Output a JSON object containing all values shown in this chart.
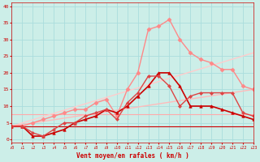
{
  "title": "",
  "xlabel": "Vent moyen/en rafales ( km/h )",
  "background_color": "#cceee8",
  "grid_color": "#aadddd",
  "xlim": [
    0,
    23
  ],
  "ylim": [
    -1,
    41
  ],
  "xticks": [
    0,
    1,
    2,
    3,
    4,
    5,
    6,
    7,
    8,
    9,
    10,
    11,
    12,
    13,
    14,
    15,
    16,
    17,
    18,
    19,
    20,
    21,
    22,
    23
  ],
  "yticks": [
    0,
    5,
    10,
    15,
    20,
    25,
    30,
    35,
    40
  ],
  "series": [
    {
      "x": [
        0,
        23
      ],
      "y": [
        4,
        4
      ],
      "color": "#cc0000",
      "linewidth": 0.8,
      "marker": null,
      "linestyle": "-"
    },
    {
      "x": [
        0,
        23
      ],
      "y": [
        7.5,
        7.5
      ],
      "color": "#ffaaaa",
      "linewidth": 0.8,
      "marker": null,
      "linestyle": "-"
    },
    {
      "x": [
        0,
        23
      ],
      "y": [
        4,
        26
      ],
      "color": "#ffcccc",
      "linewidth": 1.0,
      "marker": null,
      "linestyle": "-"
    },
    {
      "x": [
        0,
        23
      ],
      "y": [
        4,
        15
      ],
      "color": "#ffbbbb",
      "linewidth": 1.0,
      "marker": null,
      "linestyle": "-"
    },
    {
      "x": [
        0,
        1,
        2,
        3,
        4,
        5,
        6,
        7,
        8,
        9,
        10,
        11,
        12,
        13,
        14,
        15,
        16,
        17,
        18,
        19,
        20,
        21,
        22,
        23
      ],
      "y": [
        4,
        4,
        5,
        6,
        7,
        8,
        9,
        9,
        11,
        12,
        7,
        15,
        20,
        33,
        34,
        36,
        30,
        26,
        24,
        23,
        21,
        21,
        16,
        15
      ],
      "color": "#ff8888",
      "linewidth": 1.0,
      "marker": "D",
      "markersize": 2.5,
      "linestyle": "-"
    },
    {
      "x": [
        0,
        1,
        2,
        3,
        4,
        5,
        6,
        7,
        8,
        9,
        10,
        11,
        12,
        13,
        14,
        15,
        16,
        17,
        18,
        19,
        20,
        21,
        22,
        23
      ],
      "y": [
        4,
        4,
        1,
        1,
        2,
        3,
        5,
        6,
        7,
        9,
        8,
        10,
        13,
        16,
        20,
        20,
        16,
        10,
        10,
        10,
        9,
        8,
        7,
        6
      ],
      "color": "#cc0000",
      "linewidth": 1.2,
      "marker": "^",
      "markersize": 2.5,
      "linestyle": "-"
    },
    {
      "x": [
        0,
        1,
        2,
        3,
        4,
        5,
        6,
        7,
        8,
        9,
        10,
        11,
        12,
        13,
        14,
        15,
        16,
        17,
        18,
        19,
        20,
        21,
        22,
        23
      ],
      "y": [
        4,
        4,
        2,
        1,
        3,
        5,
        5,
        7,
        8,
        9,
        6,
        11,
        14,
        19,
        19,
        16,
        10,
        13,
        14,
        14,
        14,
        14,
        8,
        7
      ],
      "color": "#dd4444",
      "linewidth": 1.0,
      "marker": "D",
      "markersize": 2.0,
      "linestyle": "-"
    }
  ]
}
